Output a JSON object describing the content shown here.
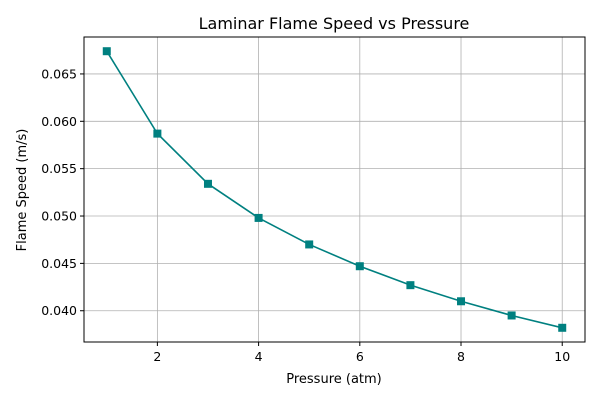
{
  "chart_data": {
    "type": "line",
    "title": "Laminar Flame Speed vs Pressure",
    "xlabel": "Pressure (atm)",
    "ylabel": "Flame Speed (m/s)",
    "x": [
      1,
      2,
      3,
      4,
      5,
      6,
      7,
      8,
      9,
      10
    ],
    "series": [
      {
        "values": [
          0.0674,
          0.0587,
          0.0534,
          0.0498,
          0.047,
          0.0447,
          0.0427,
          0.041,
          0.0395,
          0.0382
        ]
      }
    ],
    "xlim": [
      0.55,
      10.45
    ],
    "ylim": [
      0.0367,
      0.0689
    ],
    "xticks": [
      2,
      4,
      6,
      8,
      10
    ],
    "xtick_labels": [
      "2",
      "4",
      "6",
      "8",
      "10"
    ],
    "yticks": [
      0.04,
      0.045,
      0.05,
      0.055,
      0.06,
      0.065
    ],
    "ytick_labels": [
      "0.040",
      "0.045",
      "0.050",
      "0.055",
      "0.060",
      "0.065"
    ],
    "grid": true,
    "marker": "square",
    "color": "#008080"
  }
}
